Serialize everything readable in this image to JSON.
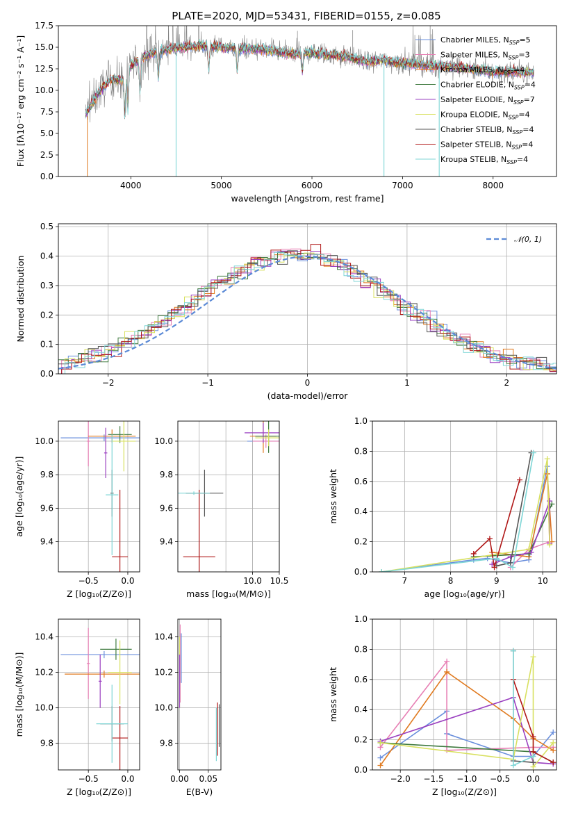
{
  "figure": {
    "title": "PLATE=2020, MJD=53431, FIBERID=0155, z=0.085"
  },
  "colors": {
    "chabrier_miles": "#6a8fdc",
    "salpeter_miles": "#e77fb4",
    "kroupa_miles": "#e07a1f",
    "chabrier_elodie": "#3f7a3f",
    "salpeter_elodie": "#9a3fc0",
    "kroupa_elodie": "#d8e060",
    "chabrier_stelib": "#555555",
    "salpeter_stelib": "#b01818",
    "kroupa_stelib": "#7fd6d6",
    "data": "#808080"
  },
  "chart_data": [
    {
      "id": "spectrum",
      "type": "line",
      "xlabel": "wavelength [Angstrom, rest frame]",
      "ylabel": "Flux [fλ10⁻¹⁷ erg cm⁻² s⁻¹ A⁻¹]",
      "xlim": [
        3200,
        8700
      ],
      "ylim": [
        0,
        17.5
      ],
      "xticks": [
        "4000",
        "5000",
        "6000",
        "7000",
        "8000"
      ],
      "yticks": [
        "0.0",
        "2.5",
        "5.0",
        "7.5",
        "10.0",
        "12.5",
        "15.0",
        "17.5"
      ],
      "legend": [
        {
          "label": "Chabrier MILES, N",
          "sub": "SSP",
          "suffix": "=5",
          "color": "#6a8fdc"
        },
        {
          "label": "Salpeter MILES, N",
          "sub": "SSP",
          "suffix": "=3",
          "color": "#e77fb4"
        },
        {
          "label": "Kroupa MILES, N",
          "sub": "SSP",
          "suffix": "=4",
          "color": "#e07a1f"
        },
        {
          "label": "Chabrier ELODIE, N",
          "sub": "SSP",
          "suffix": "=4",
          "color": "#3f7a3f"
        },
        {
          "label": "Salpeter ELODIE, N",
          "sub": "SSP",
          "suffix": "=7",
          "color": "#9a3fc0"
        },
        {
          "label": "Kroupa ELODIE, N",
          "sub": "SSP",
          "suffix": "=4",
          "color": "#d8e060"
        },
        {
          "label": "Chabrier STELIB, N",
          "sub": "SSP",
          "suffix": "=4",
          "color": "#555555"
        },
        {
          "label": "Salpeter STELIB, N",
          "sub": "SSP",
          "suffix": "=4",
          "color": "#b01818"
        },
        {
          "label": "Kroupa STELIB, N",
          "sub": "SSP",
          "suffix": "=4",
          "color": "#7fd6d6"
        }
      ],
      "continuum": [
        [
          3500,
          7.2
        ],
        [
          3600,
          9.0
        ],
        [
          3700,
          10.5
        ],
        [
          3800,
          11.3
        ],
        [
          3900,
          11.2
        ],
        [
          4000,
          12.9
        ],
        [
          4100,
          13.6
        ],
        [
          4200,
          14.2
        ],
        [
          4400,
          14.8
        ],
        [
          4600,
          15.0
        ],
        [
          4800,
          15.2
        ],
        [
          5000,
          15.0
        ],
        [
          5200,
          14.9
        ],
        [
          5400,
          14.8
        ],
        [
          5600,
          14.5
        ],
        [
          5800,
          14.2
        ],
        [
          6000,
          14.4
        ],
        [
          6200,
          14.1
        ],
        [
          6400,
          13.9
        ],
        [
          6600,
          13.3
        ],
        [
          6800,
          13.5
        ],
        [
          7000,
          13.2
        ],
        [
          7200,
          13.0
        ],
        [
          7400,
          12.8
        ],
        [
          7600,
          12.7
        ],
        [
          7800,
          12.4
        ],
        [
          8000,
          12.1
        ],
        [
          8200,
          12.2
        ],
        [
          8450,
          12.0
        ]
      ],
      "absorption_lines": [
        [
          3934,
          4.5
        ],
        [
          3968,
          4.0
        ],
        [
          4102,
          3.5
        ],
        [
          4304,
          3.0
        ],
        [
          4861,
          2.5
        ],
        [
          5175,
          2.5
        ],
        [
          5893,
          2.0
        ]
      ],
      "gaps": [
        4500,
        6795,
        7405
      ]
    },
    {
      "id": "residuals",
      "type": "area",
      "xlabel": "(data-model)/error",
      "ylabel": "Normed distribution",
      "xlim": [
        -2.5,
        2.5
      ],
      "ylim": [
        0,
        0.51
      ],
      "xticks": [
        "−2",
        "−1",
        "0",
        "1",
        "2"
      ],
      "yticks": [
        "0.0",
        "0.1",
        "0.2",
        "0.3",
        "0.4",
        "0.5"
      ],
      "legend": [
        {
          "label": "𝒩(0, 1)",
          "color": "#5b8ad6"
        }
      ],
      "grid": true
    },
    {
      "id": "age_vs_Z",
      "type": "scatter",
      "xlabel": "Z [log₁₀(Z/Z⊙)]",
      "ylabel": "age  [log₁₀(age/yr)]",
      "xlim": [
        -0.88,
        0.15
      ],
      "ylim": [
        9.22,
        10.12
      ],
      "xticks": [
        "−0.5",
        "0.0"
      ],
      "yticks": [
        "9.4",
        "9.6",
        "9.8",
        "10.0"
      ],
      "grid": true,
      "points": [
        {
          "x": -0.3,
          "y": 10.02,
          "xerr": 0.55,
          "yerr": 0.02,
          "color": "#6a8fdc"
        },
        {
          "x": -0.5,
          "y": 10.0,
          "xerr": 0.02,
          "yerr": 0.15,
          "color": "#e77fb4"
        },
        {
          "x": -0.2,
          "y": 10.03,
          "xerr": 0.3,
          "yerr": 0.04,
          "color": "#e07a1f"
        },
        {
          "x": -0.1,
          "y": 10.04,
          "xerr": 0.15,
          "yerr": 0.05,
          "color": "#3f7a3f"
        },
        {
          "x": -0.28,
          "y": 9.93,
          "xerr": 0.02,
          "yerr": 0.15,
          "color": "#9a3fc0"
        },
        {
          "x": -0.05,
          "y": 10.0,
          "xerr": 0.15,
          "yerr": 0.18,
          "color": "#d8e060"
        },
        {
          "x": -0.2,
          "y": 9.69,
          "xerr": 0.02,
          "yerr": 0.14,
          "color": "#555555"
        },
        {
          "x": -0.1,
          "y": 9.31,
          "xerr": 0.1,
          "yerr": 0.4,
          "color": "#b01818"
        },
        {
          "x": -0.2,
          "y": 9.68,
          "xerr": 0.08,
          "yerr": 0.36,
          "color": "#7fd6d6"
        }
      ]
    },
    {
      "id": "age_vs_mass",
      "type": "scatter",
      "xlabel": "mass [log₁₀(M/M⊙)]",
      "ylabel": "",
      "xlim": [
        8.6,
        10.5
      ],
      "ylim": [
        9.22,
        10.12
      ],
      "xticks": [
        "10.0",
        "10.5"
      ],
      "yticks": [
        "9.4",
        "9.6",
        "9.8",
        "10.0"
      ],
      "grid": true,
      "points": [
        {
          "x": 10.3,
          "y": 10.0,
          "xerr": 0.4,
          "yerr": 0.02,
          "color": "#6a8fdc"
        },
        {
          "x": 10.25,
          "y": 10.0,
          "xerr": 0.25,
          "yerr": 0.04,
          "color": "#e77fb4"
        },
        {
          "x": 10.2,
          "y": 10.03,
          "xerr": 0.25,
          "yerr": 0.1,
          "color": "#e07a1f"
        },
        {
          "x": 10.3,
          "y": 10.03,
          "xerr": 0.25,
          "yerr": 0.1,
          "color": "#3f7a3f"
        },
        {
          "x": 10.2,
          "y": 10.05,
          "xerr": 0.35,
          "yerr": 0.06,
          "color": "#9a3fc0"
        },
        {
          "x": 10.3,
          "y": 10.02,
          "xerr": 0.25,
          "yerr": 0.05,
          "color": "#d8e060"
        },
        {
          "x": 9.1,
          "y": 9.69,
          "xerr": 0.35,
          "yerr": 0.14,
          "color": "#555555"
        },
        {
          "x": 9.0,
          "y": 9.31,
          "xerr": 0.3,
          "yerr": 0.4,
          "color": "#b01818"
        },
        {
          "x": 8.9,
          "y": 9.69,
          "xerr": 0.3,
          "yerr": 0.01,
          "color": "#7fd6d6"
        }
      ]
    },
    {
      "id": "massweight_vs_age",
      "type": "line",
      "xlabel": "age  [log₁₀(age/yr)]",
      "ylabel": "mass weight",
      "xlim": [
        6.3,
        10.3
      ],
      "ylim": [
        0,
        1.0
      ],
      "xticks": [
        "7",
        "8",
        "9",
        "10"
      ],
      "yticks": [
        "0.0",
        "0.2",
        "0.4",
        "0.6",
        "0.8",
        "1.0"
      ],
      "grid": true,
      "series": [
        {
          "color": "#6a8fdc",
          "points": [
            [
              6.5,
              0.0
            ],
            [
              8.5,
              0.08
            ],
            [
              8.8,
              0.09
            ],
            [
              9.3,
              0.06
            ],
            [
              9.7,
              0.08
            ],
            [
              10.1,
              0.7
            ]
          ]
        },
        {
          "color": "#e77fb4",
          "points": [
            [
              9.3,
              0.03
            ],
            [
              9.7,
              0.15
            ],
            [
              10.15,
              0.2
            ],
            [
              10.1,
              0.65
            ]
          ]
        },
        {
          "color": "#e07a1f",
          "points": [
            [
              8.9,
              0.13
            ],
            [
              9.7,
              0.1
            ],
            [
              10.1,
              0.65
            ],
            [
              10.2,
              0.2
            ]
          ]
        },
        {
          "color": "#3f7a3f",
          "points": [
            [
              8.5,
              0.1
            ],
            [
              9.7,
              0.12
            ],
            [
              10.2,
              0.45
            ]
          ]
        },
        {
          "color": "#9a3fc0",
          "points": [
            [
              8.9,
              0.05
            ],
            [
              9.3,
              0.1
            ],
            [
              9.75,
              0.13
            ],
            [
              10.15,
              0.47
            ],
            [
              10.15,
              0.19
            ]
          ]
        },
        {
          "color": "#d8e060",
          "points": [
            [
              6.5,
              0.0
            ],
            [
              9.7,
              0.15
            ],
            [
              10.1,
              0.75
            ],
            [
              10.15,
              0.18
            ]
          ]
        },
        {
          "color": "#555555",
          "points": [
            [
              9.0,
              0.04
            ],
            [
              9.3,
              0.06
            ],
            [
              9.75,
              0.79
            ]
          ]
        },
        {
          "color": "#b01818",
          "points": [
            [
              8.5,
              0.12
            ],
            [
              8.85,
              0.22
            ],
            [
              8.95,
              0.03
            ],
            [
              9.5,
              0.61
            ]
          ]
        },
        {
          "color": "#7fd6d6",
          "points": [
            [
              6.5,
              0.0
            ],
            [
              9.0,
              0.09
            ],
            [
              9.35,
              0.03
            ],
            [
              9.8,
              0.79
            ]
          ]
        }
      ]
    },
    {
      "id": "mass_vs_Z",
      "type": "scatter",
      "xlabel": "Z [log₁₀(Z/Z⊙)]",
      "ylabel": "mass [log₁₀(M/M⊙)]",
      "xlim": [
        -0.88,
        0.15
      ],
      "ylim": [
        9.65,
        10.5
      ],
      "xticks": [
        "−0.5",
        "0.0"
      ],
      "yticks": [
        "9.8",
        "10.0",
        "10.2",
        "10.4"
      ],
      "grid": true,
      "points": [
        {
          "x": -0.3,
          "y": 10.3,
          "xerr": 0.55,
          "yerr": 0.02,
          "color": "#6a8fdc"
        },
        {
          "x": -0.5,
          "y": 10.25,
          "xerr": 0.02,
          "yerr": 0.2,
          "color": "#e77fb4"
        },
        {
          "x": -0.3,
          "y": 10.19,
          "xerr": 0.5,
          "yerr": 0.02,
          "color": "#e07a1f"
        },
        {
          "x": -0.15,
          "y": 10.33,
          "xerr": 0.2,
          "yerr": 0.06,
          "color": "#3f7a3f"
        },
        {
          "x": -0.35,
          "y": 10.15,
          "xerr": 0.02,
          "yerr": 0.15,
          "color": "#9a3fc0"
        },
        {
          "x": -0.1,
          "y": 10.2,
          "xerr": 0.15,
          "yerr": 0.18,
          "color": "#d8e060"
        },
        {
          "x": -0.2,
          "y": 9.91,
          "xerr": 0.15,
          "yerr": 0.1,
          "color": "#555555"
        },
        {
          "x": -0.1,
          "y": 9.83,
          "xerr": 0.1,
          "yerr": 0.18,
          "color": "#b01818"
        },
        {
          "x": -0.2,
          "y": 9.91,
          "xerr": 0.2,
          "yerr": 0.22,
          "color": "#7fd6d6"
        }
      ]
    },
    {
      "id": "mass_vs_ebv",
      "type": "scatter",
      "xlabel": "E(B-V)",
      "ylabel": "",
      "xlim": [
        -0.003,
        0.072
      ],
      "ylim": [
        9.65,
        10.5
      ],
      "xticks": [
        "0.00",
        "0.05"
      ],
      "yticks": [
        "9.8",
        "10.0",
        "10.2",
        "10.4"
      ],
      "grid": true,
      "points": [
        {
          "x": 0.003,
          "y": 10.28,
          "xerr": 0,
          "yerr": 0.14,
          "color": "#6a8fdc"
        },
        {
          "x": 0.001,
          "y": 10.25,
          "xerr": 0,
          "yerr": 0.22,
          "color": "#e77fb4"
        },
        {
          "x": 0.0,
          "y": 10.2,
          "xerr": 0,
          "yerr": 0.2,
          "color": "#d8e060"
        },
        {
          "x": 0.0,
          "y": 10.15,
          "xerr": 0,
          "yerr": 0.15,
          "color": "#9a3fc0"
        },
        {
          "x": 0.069,
          "y": 9.9,
          "xerr": 0,
          "yerr": 0.12,
          "color": "#555555"
        },
        {
          "x": 0.066,
          "y": 9.88,
          "xerr": 0,
          "yerr": 0.15,
          "color": "#b01818"
        },
        {
          "x": 0.064,
          "y": 9.85,
          "xerr": 0,
          "yerr": 0.15,
          "color": "#7fd6d6"
        }
      ]
    },
    {
      "id": "massweight_vs_Z",
      "type": "line",
      "xlabel": "Z [log₁₀(Z/Z⊙)]",
      "ylabel": "mass weight",
      "xlim": [
        -2.42,
        0.35
      ],
      "ylim": [
        0,
        1.0
      ],
      "xticks": [
        "−2.0",
        "−1.5",
        "−1.0",
        "−0.5",
        "0.0"
      ],
      "yticks": [
        "0.0",
        "0.2",
        "0.4",
        "0.6",
        "0.8",
        "1.0"
      ],
      "grid": true,
      "series": [
        {
          "color": "#6a8fdc",
          "points": [
            [
              -2.3,
              0.08
            ],
            [
              -1.3,
              0.39
            ],
            [
              -1.3,
              0.24
            ],
            [
              -0.3,
              0.09
            ],
            [
              0.0,
              0.09
            ],
            [
              0.3,
              0.25
            ]
          ]
        },
        {
          "color": "#e77fb4",
          "points": [
            [
              -2.3,
              0.15
            ],
            [
              -1.3,
              0.72
            ],
            [
              -1.3,
              0.13
            ],
            [
              0.0,
              0.15
            ],
            [
              0.3,
              0.15
            ]
          ]
        },
        {
          "color": "#e07a1f",
          "points": [
            [
              -2.3,
              0.03
            ],
            [
              -1.3,
              0.65
            ],
            [
              -0.3,
              0.34
            ],
            [
              0.0,
              0.21
            ],
            [
              0.3,
              0.13
            ]
          ]
        },
        {
          "color": "#3f7a3f",
          "points": [
            [
              -2.3,
              0.18
            ],
            [
              0.0,
              0.12
            ],
            [
              0.3,
              0.05
            ]
          ]
        },
        {
          "color": "#9a3fc0",
          "points": [
            [
              -2.3,
              0.19
            ],
            [
              -0.3,
              0.48
            ],
            [
              0.0,
              0.05
            ],
            [
              0.3,
              0.04
            ]
          ]
        },
        {
          "color": "#d8e060",
          "points": [
            [
              -2.3,
              0.18
            ],
            [
              -0.3,
              0.07
            ],
            [
              0.0,
              0.75
            ],
            [
              0.0,
              0.02
            ],
            [
              0.3,
              0.18
            ]
          ]
        },
        {
          "color": "#555555",
          "points": [
            [
              -0.3,
              0.79
            ],
            [
              -0.3,
              0.06
            ],
            [
              0.0,
              0.05
            ]
          ]
        },
        {
          "color": "#b01818",
          "points": [
            [
              -0.3,
              0.6
            ],
            [
              0.0,
              0.22
            ],
            [
              0.0,
              0.12
            ],
            [
              0.3,
              0.05
            ]
          ]
        },
        {
          "color": "#7fd6d6",
          "points": [
            [
              -0.3,
              0.79
            ],
            [
              -0.3,
              0.03
            ],
            [
              0.0,
              0.09
            ]
          ]
        }
      ]
    }
  ]
}
